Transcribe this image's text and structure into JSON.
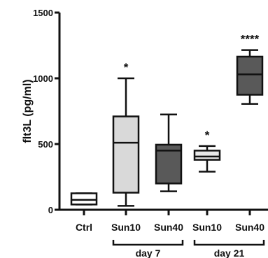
{
  "chart_data": {
    "type": "box",
    "ylabel": "flt3L (pg/ml)",
    "ylim": [
      0,
      1500
    ],
    "yticks": [
      0,
      500,
      1000,
      1500
    ],
    "categories": [
      "Ctrl",
      "Sun10",
      "Sun40",
      "Sun10",
      "Sun40"
    ],
    "groups": [
      {
        "label": "day 7",
        "members": [
          1,
          2
        ]
      },
      {
        "label": "day 21",
        "members": [
          3,
          4
        ]
      }
    ],
    "boxes": [
      {
        "category": "Ctrl",
        "min": 40,
        "q1": 40,
        "median": 75,
        "q3": 125,
        "max": 125,
        "fill": "#ffffff",
        "significance": ""
      },
      {
        "category": "Sun10",
        "min": 30,
        "q1": 130,
        "median": 510,
        "q3": 710,
        "max": 1000,
        "fill": "#d9d9d9",
        "significance": "*"
      },
      {
        "category": "Sun40",
        "min": 140,
        "q1": 200,
        "median": 450,
        "q3": 495,
        "max": 725,
        "fill": "#595959",
        "significance": ""
      },
      {
        "category": "Sun10",
        "min": 290,
        "q1": 380,
        "median": 405,
        "q3": 450,
        "max": 485,
        "fill": "#e8e8e8",
        "significance": "*"
      },
      {
        "category": "Sun40",
        "min": 805,
        "q1": 875,
        "median": 1030,
        "q3": 1165,
        "max": 1215,
        "fill": "#595959",
        "significance": "****"
      }
    ],
    "grid": false,
    "legend": "none"
  }
}
